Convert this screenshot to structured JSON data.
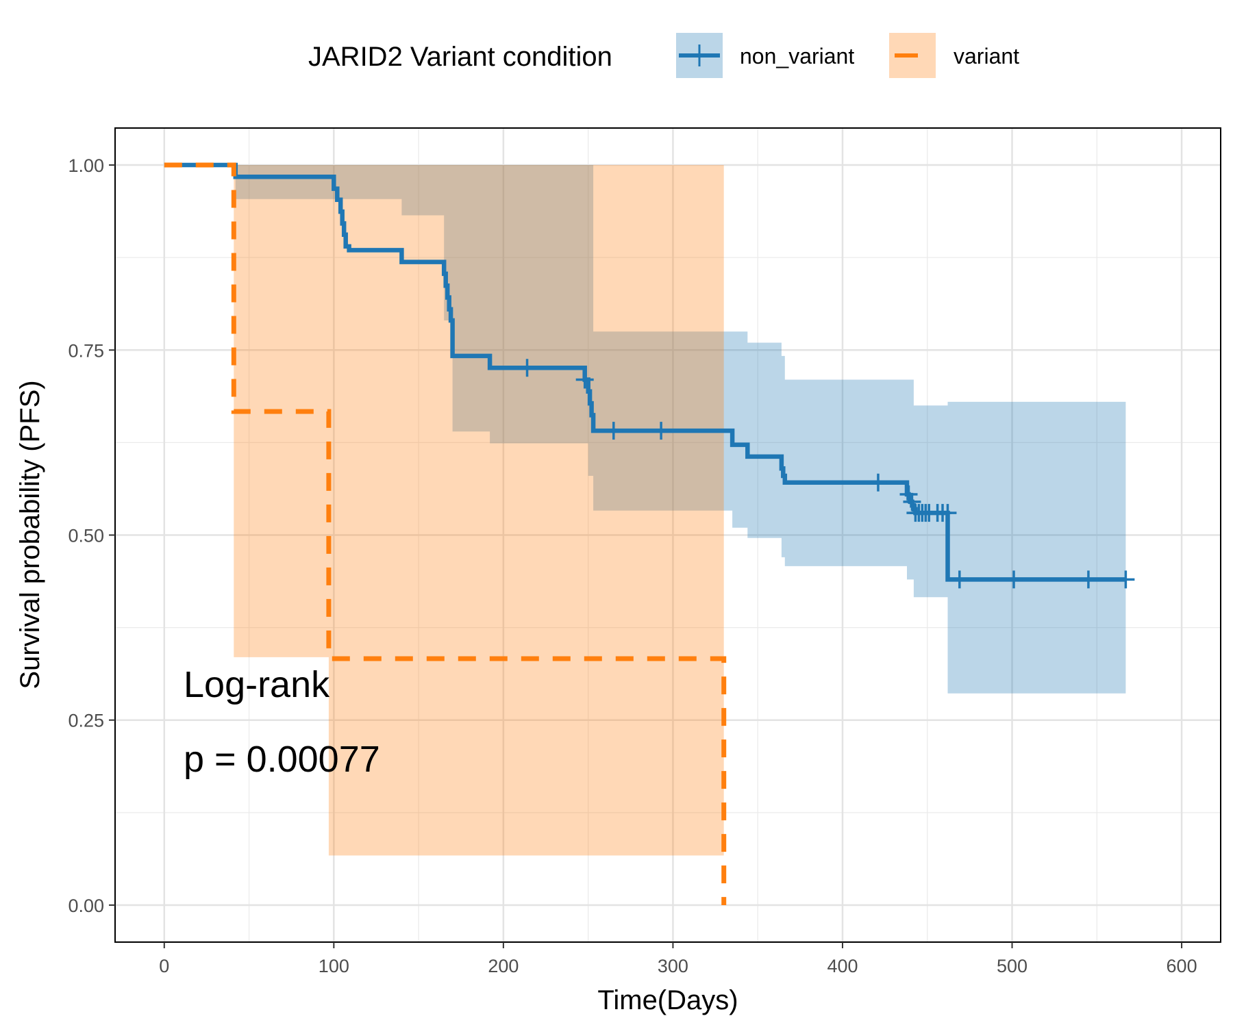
{
  "chart_data": {
    "type": "line",
    "xlabel": "Time(Days)",
    "ylabel": "Survival probability (PFS)",
    "xlim": [
      -29,
      623
    ],
    "ylim": [
      -0.05,
      1.05
    ],
    "x_ticks": [
      0,
      100,
      200,
      300,
      400,
      500,
      600
    ],
    "x_tick_labels": [
      "0",
      "100",
      "200",
      "300",
      "400",
      "500",
      "600"
    ],
    "y_ticks": [
      0,
      0.25,
      0.5,
      0.75,
      1
    ],
    "y_tick_labels": [
      "0.00",
      "0.25",
      "0.50",
      "0.75",
      "1.00"
    ],
    "grid": true,
    "legend": {
      "title": "JARID2 Variant condition",
      "position": "top"
    },
    "annotations": [
      "Log-rank",
      "p = 0.00077"
    ],
    "series": [
      {
        "name": "non_variant",
        "color": "#1f77b4",
        "line_style": "solid",
        "step_x": [
          0,
          42,
          42,
          99,
          100,
          102,
          104,
          105,
          106,
          107,
          108,
          109,
          110,
          140,
          165,
          166,
          167,
          168,
          169,
          170,
          192,
          248,
          250,
          251,
          252,
          253,
          335,
          344,
          364,
          365,
          366,
          438,
          439,
          440,
          441,
          442,
          443,
          444,
          446,
          448,
          450,
          455,
          458,
          462,
          567
        ],
        "survival": [
          1.0,
          1.0,
          0.984,
          0.984,
          0.968,
          0.953,
          0.937,
          0.921,
          0.906,
          0.89,
          0.89,
          0.885,
          0.885,
          0.869,
          0.853,
          0.837,
          0.821,
          0.805,
          0.79,
          0.742,
          0.726,
          0.71,
          0.694,
          0.678,
          0.662,
          0.641,
          0.622,
          0.606,
          0.59,
          0.58,
          0.571,
          0.555,
          0.55,
          0.545,
          0.54,
          0.535,
          0.53,
          0.53,
          0.53,
          0.53,
          0.53,
          0.53,
          0.53,
          0.44,
          0.44
        ],
        "ci_x": [
          42,
          100,
          140,
          165,
          170,
          192,
          250,
          253,
          335,
          344,
          364,
          366,
          438,
          442,
          462,
          567
        ],
        "ci_upper": [
          1.0,
          1.0,
          1.0,
          1.0,
          1.0,
          1.0,
          1.0,
          0.775,
          0.775,
          0.76,
          0.742,
          0.71,
          0.71,
          0.675,
          0.68,
          0.68
        ],
        "ci_lower": [
          0.954,
          0.954,
          0.932,
          0.79,
          0.64,
          0.624,
          0.58,
          0.533,
          0.51,
          0.496,
          0.47,
          0.458,
          0.44,
          0.416,
          0.286,
          0.286
        ],
        "censor_x": [
          214,
          248,
          265,
          293,
          421,
          439,
          441,
          443,
          445,
          447,
          449,
          451,
          456,
          459,
          462,
          469,
          501,
          545,
          567
        ],
        "censor_y": [
          0.726,
          0.71,
          0.641,
          0.641,
          0.571,
          0.555,
          0.545,
          0.53,
          0.53,
          0.53,
          0.53,
          0.53,
          0.53,
          0.53,
          0.53,
          0.44,
          0.44,
          0.44,
          0.44
        ]
      },
      {
        "name": "variant",
        "color": "#ff7f0e",
        "line_style": "dashed",
        "step_x": [
          0,
          41,
          41,
          97,
          97,
          330,
          330
        ],
        "survival": [
          1.0,
          1.0,
          0.667,
          0.667,
          0.333,
          0.333,
          0.0
        ],
        "ci_x": [
          41,
          97,
          330
        ],
        "ci_upper": [
          1.0,
          1.0,
          1.0
        ],
        "ci_lower": [
          0.335,
          0.067,
          0.067
        ]
      }
    ]
  }
}
